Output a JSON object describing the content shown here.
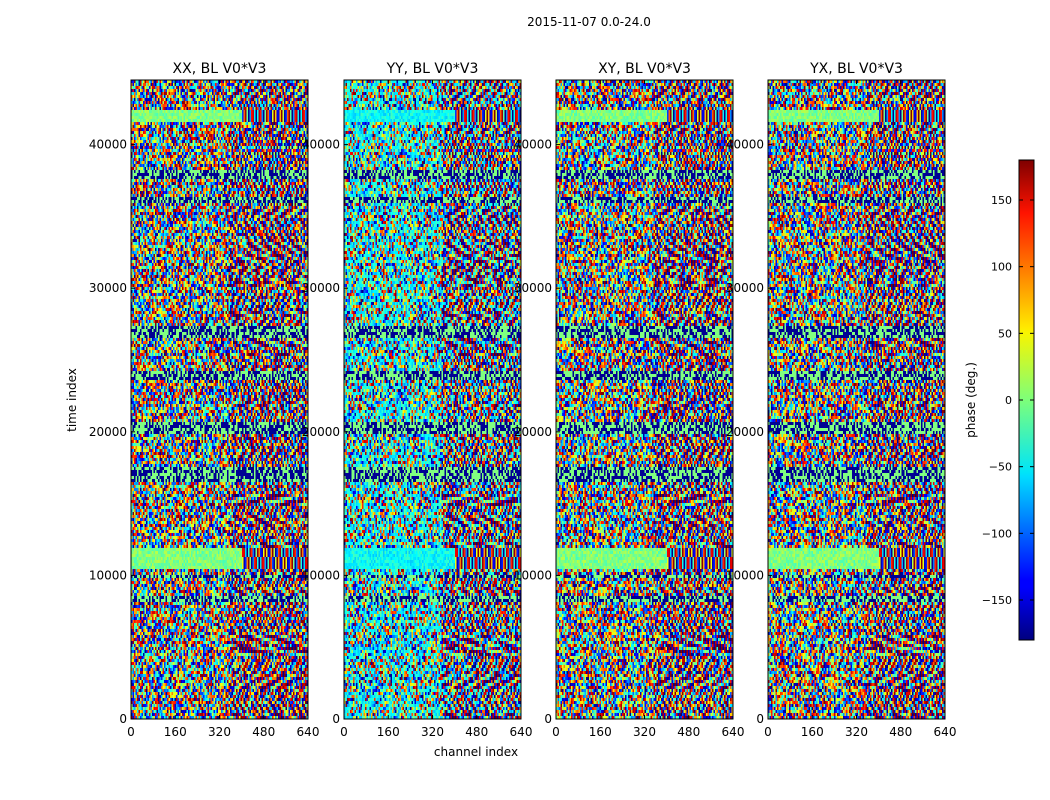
{
  "chart_data": {
    "type": "heatmap",
    "suptitle": "2015-11-07 0.0-24.0",
    "xlabel": "channel index",
    "ylabel": "time index",
    "xlim": [
      0,
      640
    ],
    "ylim": [
      0,
      44500
    ],
    "xticks": [
      0,
      160,
      320,
      480,
      640
    ],
    "yticks": [
      0,
      10000,
      20000,
      30000,
      40000
    ],
    "panels": [
      {
        "title": "XX, BL V0*V3"
      },
      {
        "title": "YY, BL V0*V3"
      },
      {
        "title": "XY, BL V0*V3"
      },
      {
        "title": "YX, BL V0*V3"
      }
    ],
    "colorbar": {
      "label": "phase (deg.)",
      "range": [
        -180,
        180
      ],
      "ticks": [
        -150,
        -100,
        -50,
        0,
        50,
        100,
        150
      ],
      "colormap": "jet"
    }
  }
}
